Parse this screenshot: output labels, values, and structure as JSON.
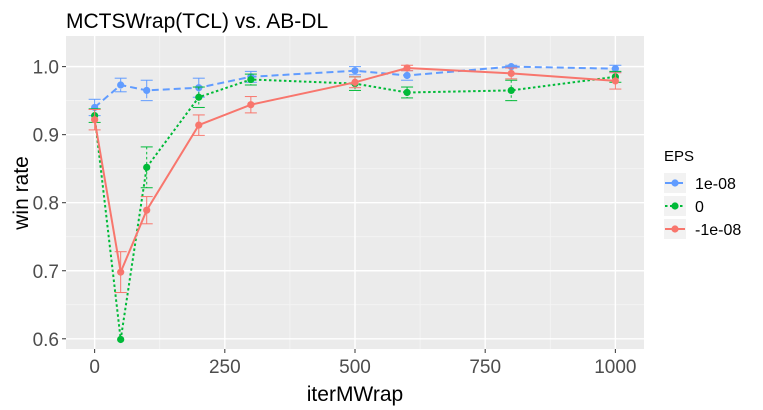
{
  "chart_data": {
    "type": "line",
    "title": "MCTSWrap(TCL) vs. AB-DL",
    "xlabel": "iterMWrap",
    "ylabel": "win rate",
    "xlim": [
      -55,
      1055
    ],
    "ylim": [
      0.585,
      1.045
    ],
    "x_ticks": [
      0,
      250,
      500,
      750,
      1000
    ],
    "y_ticks": [
      0.6,
      0.7,
      0.8,
      0.9,
      1.0
    ],
    "x_tick_labels": [
      "0",
      "250",
      "500",
      "750",
      "1000"
    ],
    "y_tick_labels": [
      "0.6",
      "0.7",
      "0.8",
      "0.9",
      "1.0"
    ],
    "grid": true,
    "legend": {
      "title": "EPS",
      "position": "right"
    },
    "series": [
      {
        "name": "1e-08",
        "color": "#619CFF",
        "line": "dashed",
        "x": [
          0,
          50,
          100,
          200,
          300,
          500,
          600,
          800,
          1000
        ],
        "y": [
          0.94,
          0.973,
          0.965,
          0.969,
          0.985,
          0.994,
          0.987,
          1.0,
          0.997
        ],
        "err": [
          0.012,
          0.01,
          0.015,
          0.014,
          0.008,
          0.006,
          0.007,
          0.002,
          0.005
        ]
      },
      {
        "name": "0",
        "color": "#00BA38",
        "line": "dotted",
        "x": [
          0,
          50,
          100,
          200,
          300,
          500,
          600,
          800,
          1000
        ],
        "y": [
          0.928,
          0.599,
          0.852,
          0.955,
          0.981,
          0.975,
          0.962,
          0.965,
          0.985
        ],
        "err": [
          0.01,
          0.0,
          0.03,
          0.015,
          0.008,
          0.01,
          0.008,
          0.015,
          0.008
        ]
      },
      {
        "name": "-1e-08",
        "color": "#F8766D",
        "line": "solid",
        "x": [
          0,
          50,
          100,
          200,
          300,
          500,
          600,
          800,
          1000
        ],
        "y": [
          0.922,
          0.698,
          0.789,
          0.914,
          0.944,
          0.977,
          0.998,
          0.99,
          0.979
        ],
        "err": [
          0.015,
          0.03,
          0.02,
          0.015,
          0.012,
          0.008,
          0.004,
          0.008,
          0.012
        ]
      }
    ]
  }
}
